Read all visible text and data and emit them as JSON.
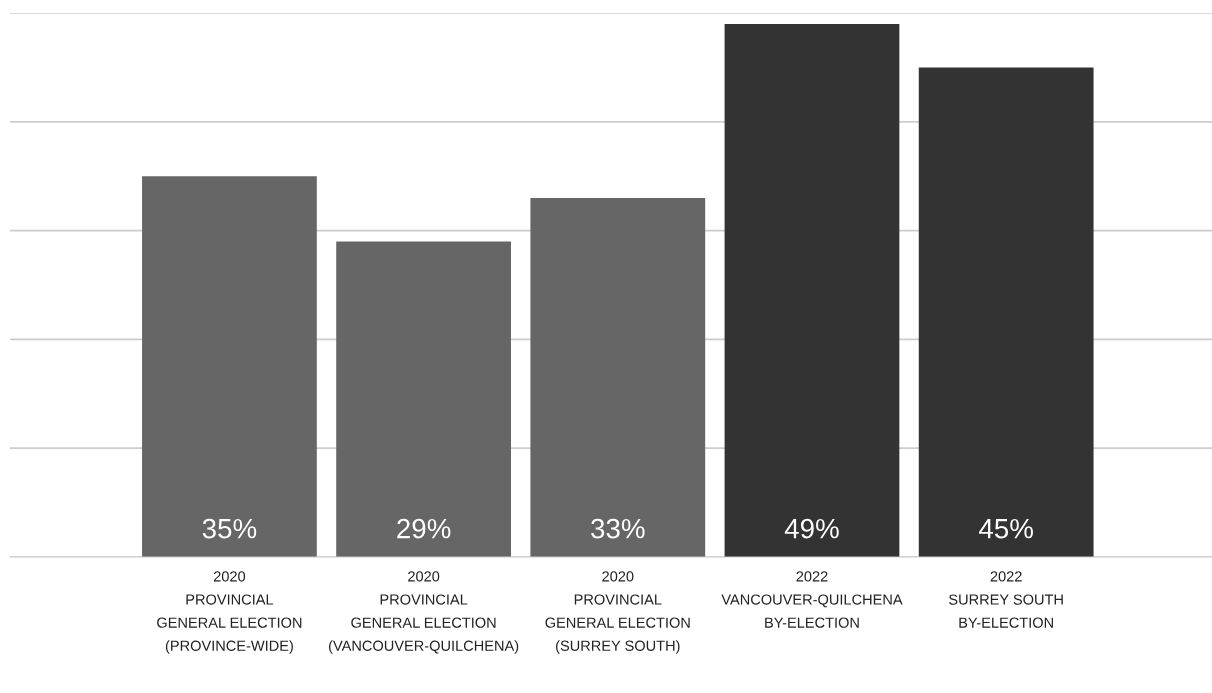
{
  "chart_data": {
    "type": "bar",
    "categories": [
      "2020\nPROVINCIAL\nGENERAL ELECTION\n(PROVINCE-WIDE)",
      "2020\nPROVINCIAL\nGENERAL ELECTION\n(VANCOUVER-QUILCHENA)",
      "2020\nPROVINCIAL\nGENERAL ELECTION\n(SURREY SOUTH)",
      "2022\nVANCOUVER-QUILCHENA\nBY-ELECTION",
      "2022\nSURREY SOUTH\nBY-ELECTION"
    ],
    "values": [
      35,
      29,
      33,
      49,
      45
    ],
    "colors": [
      "#666666",
      "#666666",
      "#666666",
      "#333333",
      "#333333"
    ],
    "value_labels": [
      "35%",
      "29%",
      "33%",
      "49%",
      "45%"
    ],
    "ylim": [
      0,
      50
    ],
    "yticks": [
      {
        "value": 0,
        "label": null
      },
      {
        "value": 10,
        "label": null
      },
      {
        "value": 20,
        "label": null
      },
      {
        "value": 30,
        "label": null
      },
      {
        "value": 40,
        "label": null
      },
      {
        "value": 50,
        "label": null
      }
    ],
    "tick_labels": "x",
    "grid": "y",
    "legend": false
  }
}
